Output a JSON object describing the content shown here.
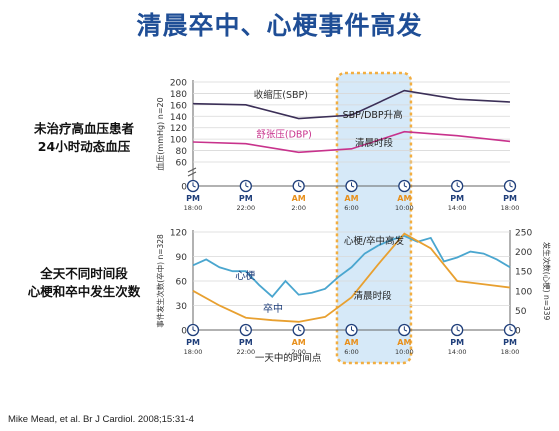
{
  "title": "清晨卒中、心梗事件高发",
  "left_labels": {
    "top": [
      "未治疗高血压患者",
      "24小时动态血压"
    ],
    "bottom": [
      "全天不同时间段",
      "心梗和卒中发生次数"
    ]
  },
  "citation": "Mike Mead, et al. Br J Cardiol. 2008;15:31-4",
  "colors": {
    "sbp": "#3b2f57",
    "dbp": "#c8328c",
    "mi": "#4aa6cf",
    "stroke": "#e8a030",
    "highlight_fill": "#cfe6f7",
    "highlight_border": "#f0a020",
    "clock": "#1f3e7a",
    "am_text": "#e8901c"
  },
  "time_axis": [
    {
      "period": "PM",
      "time": "18:00"
    },
    {
      "period": "PM",
      "time": "22:00"
    },
    {
      "period": "AM",
      "time": "2:00"
    },
    {
      "period": "AM",
      "time": "6:00"
    },
    {
      "period": "AM",
      "time": "10:00"
    },
    {
      "period": "PM",
      "time": "14:00"
    },
    {
      "period": "PM",
      "time": "18:00"
    }
  ],
  "chart_data": [
    {
      "type": "line",
      "ylabel": "血压(mmHg) n=20",
      "ylim": [
        0,
        200
      ],
      "y_ticks": [
        "0",
        "60",
        "80",
        "100",
        "120",
        "140",
        "160",
        "180",
        "200"
      ],
      "axis_break": true,
      "series": [
        {
          "name": "收缩压(SBP)",
          "x": [
            18,
            22,
            26,
            30,
            34,
            38,
            42
          ],
          "values": [
            162,
            160,
            136,
            142,
            185,
            170,
            165
          ]
        },
        {
          "name": "舒张压(DBP)",
          "x": [
            18,
            22,
            26,
            30,
            34,
            38,
            42
          ],
          "values": [
            95,
            92,
            77,
            83,
            113,
            106,
            96
          ]
        }
      ],
      "annotations": [
        "SBP/DBP升高",
        "清晨时段"
      ],
      "grid": true
    },
    {
      "type": "line",
      "ylabel": "事件发生次数(卒中) n=328",
      "ylabel_right": "发生次数(心梗) n=339",
      "xlabel": "一天中的时间点",
      "ylim_left": [
        0,
        120
      ],
      "ylim_right": [
        0,
        250
      ],
      "y_ticks_left": [
        "0",
        "30",
        "60",
        "90",
        "120"
      ],
      "y_ticks_right": [
        "0",
        "50",
        "100",
        "150",
        "200",
        "250"
      ],
      "series": [
        {
          "name": "心梗",
          "axis": "right",
          "x": [
            18,
            19,
            20,
            21,
            22,
            23,
            24,
            25,
            26,
            27,
            28,
            29,
            30,
            31,
            32,
            33,
            34,
            35,
            36,
            37,
            38,
            39,
            40,
            41,
            42
          ],
          "values": [
            165,
            180,
            160,
            150,
            150,
            115,
            85,
            125,
            90,
            95,
            105,
            135,
            160,
            195,
            215,
            230,
            240,
            225,
            235,
            175,
            185,
            200,
            195,
            180,
            160
          ]
        },
        {
          "name": "卒中",
          "axis": "left",
          "x": [
            18,
            20,
            22,
            24,
            26,
            28,
            30,
            32,
            34,
            36,
            38,
            40,
            42
          ],
          "values": [
            48,
            30,
            15,
            12,
            10,
            16,
            40,
            80,
            118,
            100,
            60,
            56,
            52
          ]
        }
      ],
      "annotations": [
        "心梗/卒中高发",
        "清晨时段"
      ],
      "grid": true
    }
  ]
}
